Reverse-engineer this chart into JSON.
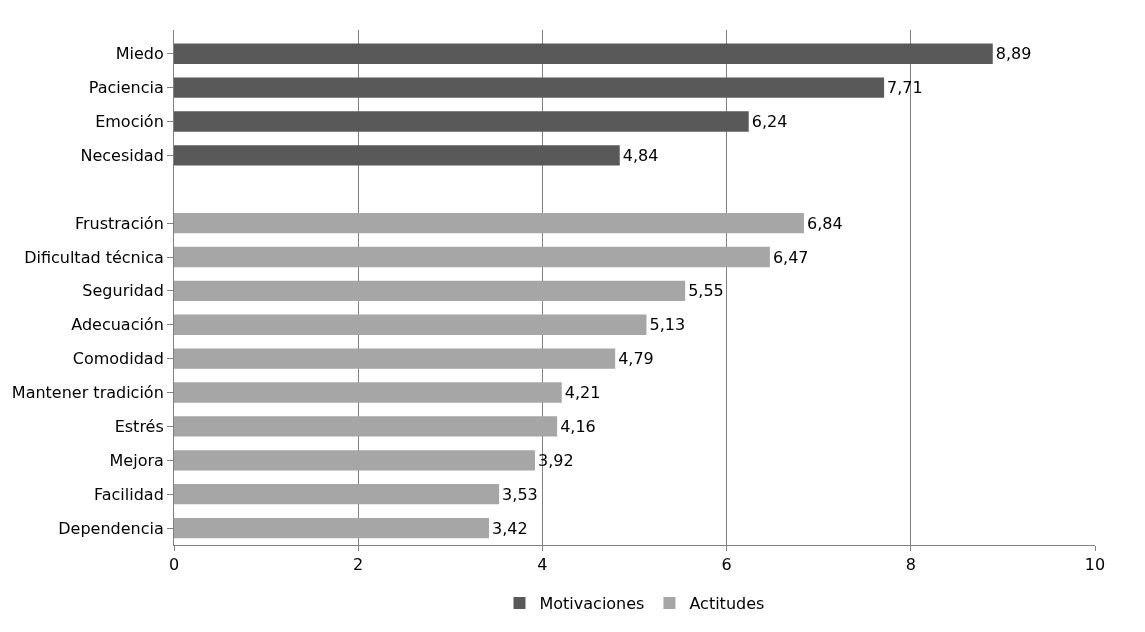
{
  "chart_data": {
    "type": "bar",
    "orientation": "horizontal",
    "categories": [
      "Miedo",
      "Paciencia",
      "Emoción",
      "Necesidad",
      null,
      "Frustración",
      "Dificultad técnica",
      "Seguridad",
      "Adecuación",
      "Comodidad",
      "Mantener tradición",
      "Estrés",
      "Mejora",
      "Facilidad",
      "Dependencia"
    ],
    "series": [
      {
        "name": "Motivaciones",
        "color": "#595959",
        "values": [
          8.89,
          7.71,
          6.24,
          4.84,
          null,
          null,
          null,
          null,
          null,
          null,
          null,
          null,
          null,
          null,
          null
        ],
        "value_labels": [
          "8,89",
          "7,71",
          "6,24",
          "4,84",
          null,
          null,
          null,
          null,
          null,
          null,
          null,
          null,
          null,
          null,
          null
        ]
      },
      {
        "name": "Actitudes",
        "color": "#a6a6a6",
        "values": [
          null,
          null,
          null,
          null,
          null,
          6.84,
          6.47,
          5.55,
          5.13,
          4.79,
          4.21,
          4.16,
          3.92,
          3.53,
          3.42
        ],
        "value_labels": [
          null,
          null,
          null,
          null,
          null,
          "6,84",
          "6,47",
          "5,55",
          "5,13",
          "4,79",
          "4,21",
          "4,16",
          "3,92",
          "3,53",
          "3,42"
        ]
      }
    ],
    "xlim": [
      0,
      10
    ],
    "xticks": [
      0,
      2,
      4,
      6,
      8,
      10
    ],
    "grid": "x",
    "legend": "bottom"
  }
}
